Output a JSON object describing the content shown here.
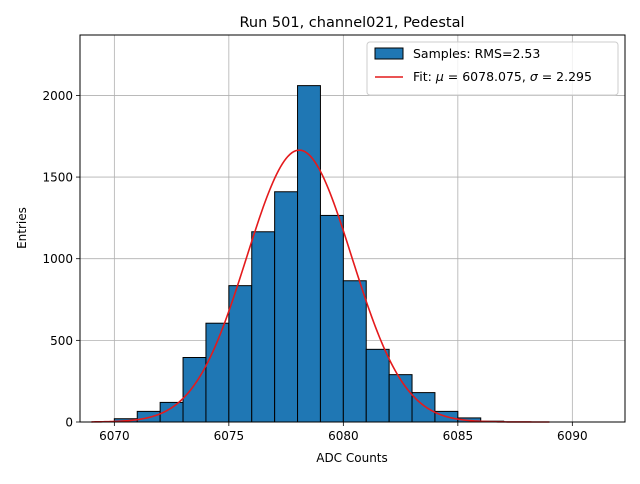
{
  "chart_data": {
    "type": "bar",
    "title": "Run 501, channel021, Pedestal",
    "xlabel": "ADC Counts",
    "ylabel": "Entries",
    "xlim": [
      6068.5,
      6092.3
    ],
    "ylim": [
      0,
      2370
    ],
    "xticks": [
      6070,
      6075,
      6080,
      6085,
      6090
    ],
    "yticks": [
      0,
      500,
      1000,
      1500,
      2000
    ],
    "grid": true,
    "legend_position": "top-right",
    "histogram": {
      "name": "Samples: RMS=2.53",
      "color": "#1f77b4",
      "bin_width": 1,
      "bin_left_edges": [
        6070,
        6071,
        6072,
        6073,
        6074,
        6075,
        6076,
        6077,
        6078,
        6079,
        6080,
        6081,
        6082,
        6083,
        6084,
        6085,
        6086
      ],
      "counts": [
        20,
        65,
        120,
        395,
        605,
        835,
        1165,
        1410,
        2060,
        1265,
        865,
        445,
        290,
        180,
        65,
        25,
        5
      ]
    },
    "fit": {
      "name_prefix": "Fit: ",
      "name_mu": "μ",
      "name_mid": " = 6078.075, ",
      "name_sigma": "σ",
      "name_suffix": " = 2.295",
      "color": "#e41a1c",
      "mu": 6078.075,
      "sigma": 2.295,
      "amplitude": 1665,
      "x_range": [
        6069,
        6089
      ]
    }
  }
}
